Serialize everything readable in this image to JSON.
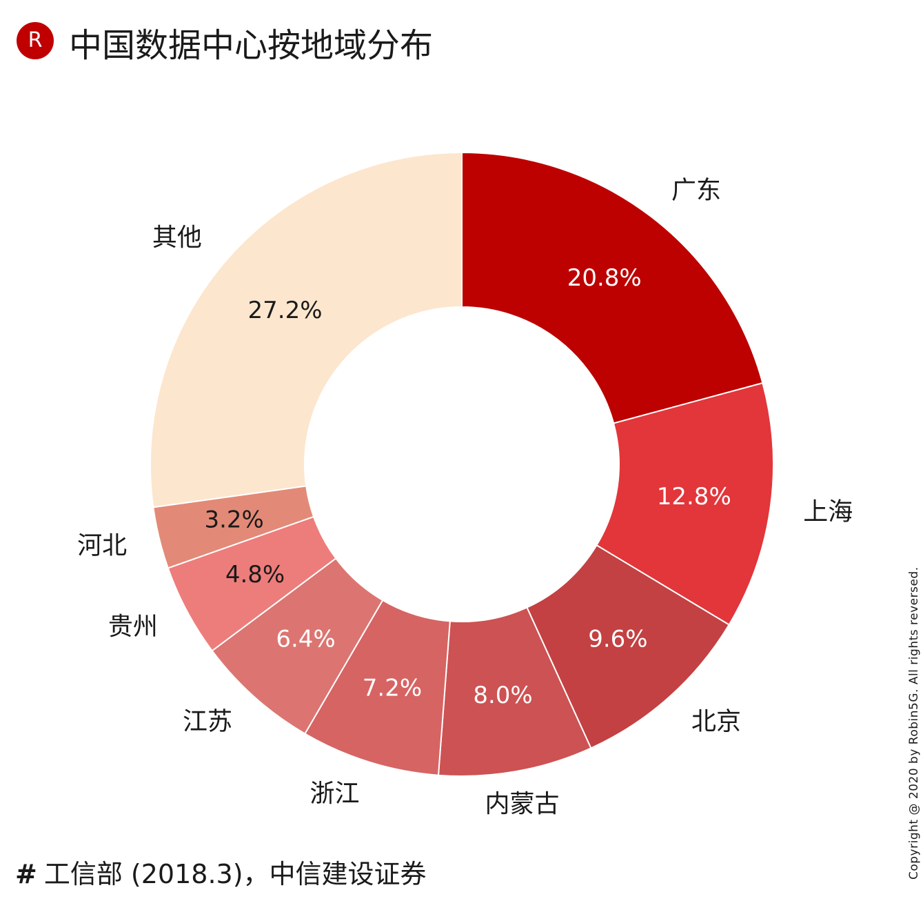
{
  "header": {
    "logo_letter": "R",
    "title": "中国数据中心按地域分布"
  },
  "chart_data": {
    "type": "pie",
    "donut": true,
    "categories": [
      "广东",
      "上海",
      "北京",
      "内蒙古",
      "浙江",
      "江苏",
      "贵州",
      "河北",
      "其他"
    ],
    "values": [
      20.8,
      12.8,
      9.6,
      8.0,
      7.2,
      6.4,
      4.8,
      3.2,
      27.2
    ],
    "value_labels": [
      "20.8%",
      "12.8%",
      "9.6%",
      "8.0%",
      "7.2%",
      "6.4%",
      "4.8%",
      "3.2%",
      "27.2%"
    ],
    "colors": [
      "#bd0000",
      "#e2363a",
      "#c34142",
      "#cd5253",
      "#d66463",
      "#dc7571",
      "#ed7d7b",
      "#e28a77",
      "#fde6ce"
    ],
    "label_colors": [
      "#ffffff",
      "#ffffff",
      "#ffffff",
      "#ffffff",
      "#ffffff",
      "#ffffff",
      "#1a1a1a",
      "#1a1a1a",
      "#1a1a1a"
    ],
    "start_angle": "12 o'clock",
    "direction": "clockwise"
  },
  "footer": {
    "source_hash": "#",
    "source_text": "工信部 (2018.3)，中信建设证券"
  },
  "copyright": "Copyright @ 2020 by Robin5G. All rights reversed."
}
